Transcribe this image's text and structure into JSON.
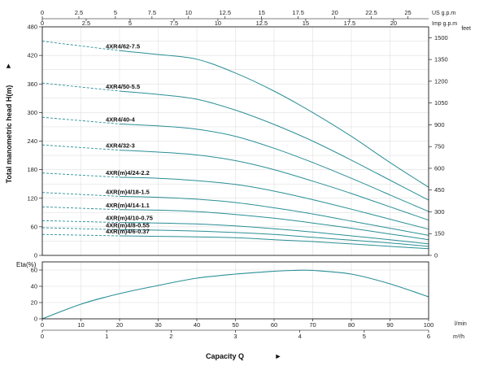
{
  "chart_data": {
    "type": "line",
    "title": "",
    "xlabel": "Capacity Q",
    "x_units": {
      "primary": "l/min",
      "secondary": "m³/h"
    },
    "top_axes": [
      {
        "unit": "US g.p.m",
        "ticks": [
          "0",
          "2.5",
          "5",
          "7.5",
          "10",
          "12.5",
          "15",
          "17.5",
          "20",
          "22.5",
          "25"
        ]
      },
      {
        "unit": "Imp g.p.m",
        "ticks": [
          "0",
          "2.5",
          "5",
          "7.5",
          "10",
          "12.5",
          "15",
          "17.5",
          "20"
        ]
      }
    ],
    "x_ticks_lmin": [
      "0",
      "10",
      "20",
      "30",
      "40",
      "50",
      "60",
      "70",
      "80",
      "90",
      "100"
    ],
    "x_ticks_m3h": [
      "0",
      "1",
      "2",
      "3",
      "4",
      "5",
      "6"
    ],
    "xlim": [
      0,
      100
    ],
    "head": {
      "ylabel": "Total manometric head H(m)",
      "ylim": [
        0,
        480
      ],
      "y_ticks": [
        "0",
        "60",
        "120",
        "180",
        "240",
        "300",
        "360",
        "420",
        "480"
      ],
      "right_unit": "feet",
      "right_ticks": [
        "0",
        "150",
        "300",
        "450",
        "600",
        "750",
        "900",
        "1050",
        "1200",
        "1350",
        "1500"
      ],
      "series": [
        {
          "name": "4XR4/62-7.5",
          "dashed": [
            [
              0,
              450
            ],
            [
              20,
              430
            ]
          ],
          "solid": [
            [
              20,
              430
            ],
            [
              30,
              422
            ],
            [
              40,
              412
            ],
            [
              50,
              383
            ],
            [
              60,
              345
            ],
            [
              70,
              300
            ],
            [
              80,
              250
            ],
            [
              90,
              195
            ],
            [
              100,
              143
            ]
          ]
        },
        {
          "name": "4XR4/50-5.5",
          "dashed": [
            [
              0,
              362
            ],
            [
              20,
              345
            ]
          ],
          "solid": [
            [
              20,
              345
            ],
            [
              30,
              338
            ],
            [
              40,
              328
            ],
            [
              50,
              305
            ],
            [
              60,
              275
            ],
            [
              70,
              240
            ],
            [
              80,
              200
            ],
            [
              90,
              158
            ],
            [
              100,
              116
            ]
          ]
        },
        {
          "name": "4XR4/40-4",
          "dashed": [
            [
              0,
              290
            ],
            [
              20,
              276
            ]
          ],
          "solid": [
            [
              20,
              276
            ],
            [
              30,
              272
            ],
            [
              40,
              265
            ],
            [
              50,
              250
            ],
            [
              60,
              225
            ],
            [
              70,
              195
            ],
            [
              80,
              162
            ],
            [
              90,
              127
            ],
            [
              100,
              92
            ]
          ]
        },
        {
          "name": "4XR4/32-3",
          "dashed": [
            [
              0,
              232
            ],
            [
              20,
              221
            ]
          ],
          "solid": [
            [
              20,
              221
            ],
            [
              30,
              217
            ],
            [
              40,
              211
            ],
            [
              50,
              199
            ],
            [
              60,
              180
            ],
            [
              70,
              156
            ],
            [
              80,
              130
            ],
            [
              90,
              102
            ],
            [
              100,
              74
            ]
          ]
        },
        {
          "name": "4XR(m)4/24-2.2",
          "dashed": [
            [
              0,
              173
            ],
            [
              20,
              164
            ]
          ],
          "solid": [
            [
              20,
              164
            ],
            [
              30,
              162
            ],
            [
              40,
              157
            ],
            [
              50,
              149
            ],
            [
              60,
              135
            ],
            [
              70,
              117
            ],
            [
              80,
              97
            ],
            [
              90,
              76
            ],
            [
              100,
              55
            ]
          ]
        },
        {
          "name": "4XR(m)4/18-1.5",
          "dashed": [
            [
              0,
              132
            ],
            [
              20,
              124
            ]
          ],
          "solid": [
            [
              20,
              124
            ],
            [
              30,
              122
            ],
            [
              40,
              118
            ],
            [
              50,
              111
            ],
            [
              60,
              100
            ],
            [
              70,
              87
            ],
            [
              80,
              72
            ],
            [
              90,
              57
            ],
            [
              100,
              42
            ]
          ]
        },
        {
          "name": "4XR(m)4/14-1.1",
          "dashed": [
            [
              0,
              102
            ],
            [
              20,
              96
            ]
          ],
          "solid": [
            [
              20,
              96
            ],
            [
              30,
              95
            ],
            [
              40,
              92
            ],
            [
              50,
              86
            ],
            [
              60,
              78
            ],
            [
              70,
              68
            ],
            [
              80,
              57
            ],
            [
              90,
              45
            ],
            [
              100,
              33
            ]
          ]
        },
        {
          "name": "4XR(m)4/10-0.75",
          "dashed": [
            [
              0,
              73
            ],
            [
              20,
              69
            ]
          ],
          "solid": [
            [
              20,
              69
            ],
            [
              30,
              68
            ],
            [
              40,
              66
            ],
            [
              50,
              62
            ],
            [
              60,
              56
            ],
            [
              70,
              49
            ],
            [
              80,
              41
            ],
            [
              90,
              33
            ],
            [
              100,
              24
            ]
          ]
        },
        {
          "name": "4XR(m)4/8-0.55",
          "dashed": [
            [
              0,
              58
            ],
            [
              20,
              54
            ]
          ],
          "solid": [
            [
              20,
              54
            ],
            [
              30,
              53
            ],
            [
              40,
              51
            ],
            [
              50,
              48
            ],
            [
              60,
              44
            ],
            [
              70,
              38
            ],
            [
              80,
              32
            ],
            [
              90,
              26
            ],
            [
              100,
              19
            ]
          ]
        },
        {
          "name": "4XR(m)4/6-0.37",
          "dashed": [
            [
              0,
              44
            ],
            [
              20,
              41
            ]
          ],
          "solid": [
            [
              20,
              41
            ],
            [
              30,
              40
            ],
            [
              40,
              39
            ],
            [
              50,
              37
            ],
            [
              60,
              33
            ],
            [
              70,
              29
            ],
            [
              80,
              24
            ],
            [
              90,
              19
            ],
            [
              100,
              14
            ]
          ]
        }
      ]
    },
    "efficiency": {
      "ylabel": "Eta(%)",
      "ylim": [
        0,
        70
      ],
      "y_ticks": [
        "0",
        "20",
        "40",
        "60"
      ],
      "series": [
        {
          "name": "",
          "points": [
            [
              0,
              0
            ],
            [
              10,
              18
            ],
            [
              20,
              31
            ],
            [
              30,
              41
            ],
            [
              40,
              50
            ],
            [
              50,
              55
            ],
            [
              60,
              58.5
            ],
            [
              65,
              59.5
            ],
            [
              70,
              59.5
            ],
            [
              80,
              55
            ],
            [
              90,
              43
            ],
            [
              100,
              27
            ]
          ]
        }
      ]
    },
    "colors": {
      "curve": "#2a8f96",
      "frame": "#000000",
      "grid": "#d9d9d9"
    }
  }
}
